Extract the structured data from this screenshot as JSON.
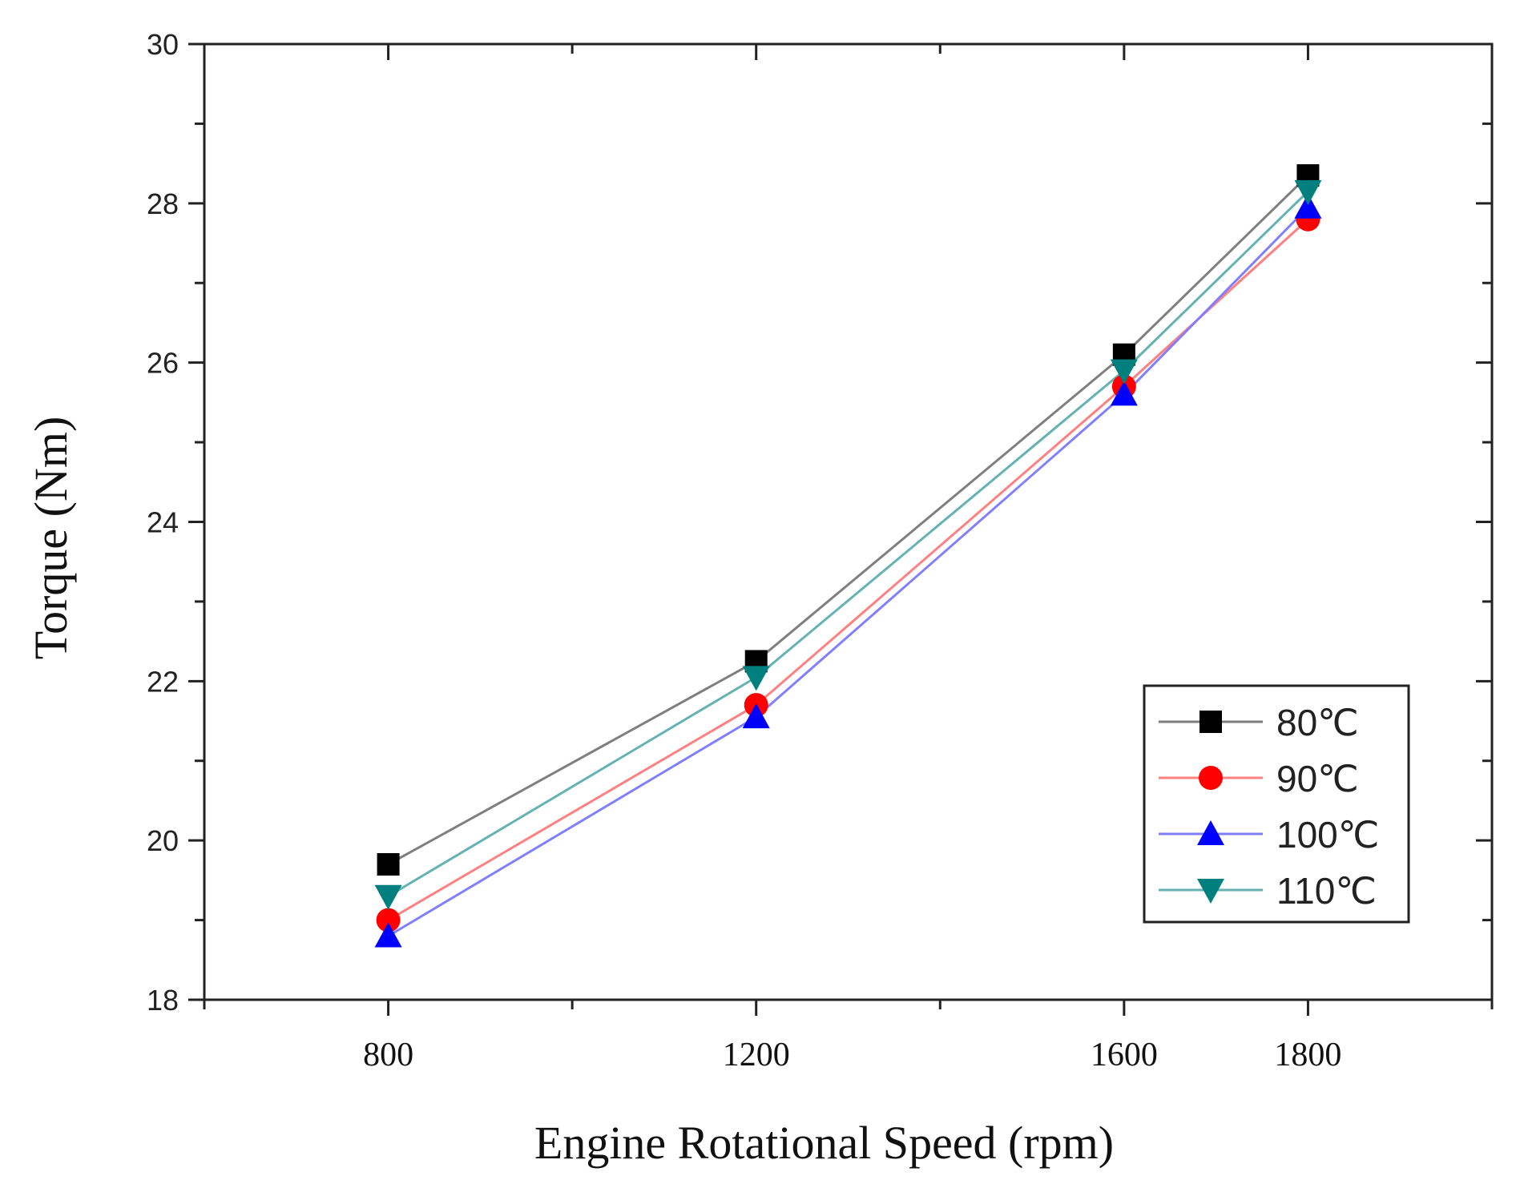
{
  "chart_data": {
    "type": "line",
    "title": "",
    "xlabel": "Engine Rotational Speed (rpm)",
    "ylabel": "Torque (Nm)",
    "x": [
      800,
      1200,
      1600,
      1800
    ],
    "x_tick_labels": [
      "800",
      "1200",
      "1600",
      "1800"
    ],
    "y_ticks": [
      18,
      20,
      22,
      24,
      26,
      28,
      30
    ],
    "y_tick_labels": [
      "18",
      "20",
      "22",
      "24",
      "26",
      "28",
      "30"
    ],
    "ylim": [
      18,
      30
    ],
    "grid": false,
    "legend_position": "bottom-right",
    "series": [
      {
        "name": "80℃",
        "color": "#000000",
        "line_color": "#7f7f7f",
        "marker": "square",
        "values": [
          19.7,
          22.25,
          26.1,
          28.35
        ]
      },
      {
        "name": "90℃",
        "color": "#ff0000",
        "line_color": "#ff8080",
        "marker": "circle",
        "values": [
          19.0,
          21.7,
          25.7,
          27.8
        ]
      },
      {
        "name": "100℃",
        "color": "#0000ff",
        "line_color": "#8080ff",
        "marker": "triangle-up",
        "values": [
          18.8,
          21.55,
          25.6,
          27.95
        ]
      },
      {
        "name": "110℃",
        "color": "#007f7f",
        "line_color": "#66b2b2",
        "marker": "triangle-down",
        "values": [
          19.3,
          22.05,
          25.9,
          28.15
        ]
      }
    ]
  }
}
